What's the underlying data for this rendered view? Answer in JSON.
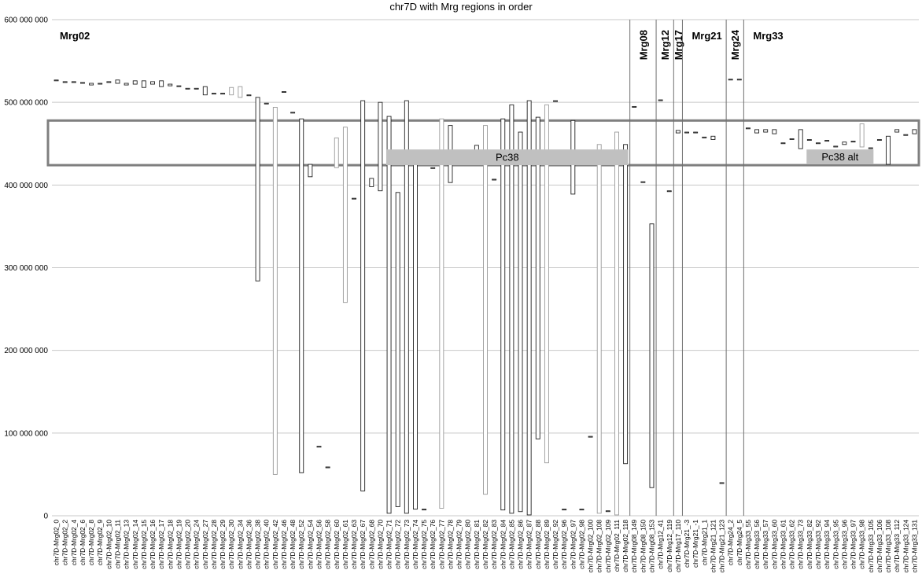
{
  "chart_data": {
    "type": "floating-bar",
    "title": "chr7D with Mrg regions in order",
    "ylim": [
      0,
      600000000
    ],
    "yticks": [
      0,
      100000000,
      200000000,
      300000000,
      400000000,
      500000000,
      600000000
    ],
    "ytick_labels": [
      "0",
      "100 000 000",
      "200 000 000",
      "300 000 000",
      "400 000 000",
      "500 000 000",
      "600 000 000"
    ],
    "grid": true,
    "categories": [
      "chr7D-Mrg02_0",
      "chr7D-Mrg02_2",
      "chr7D-Mrg02_4",
      "chr7D-Mrg02_6",
      "chr7D-Mrg02_8",
      "chr7D-Mrg02_9",
      "chr7D-Mrg02_10",
      "chr7D-Mrg02_11",
      "chr7D-Mrg02_13",
      "chr7D-Mrg02_14",
      "chr7D-Mrg02_15",
      "chr7D-Mrg02_16",
      "chr7D-Mrg02_17",
      "chr7D-Mrg02_18",
      "chr7D-Mrg02_19",
      "chr7D-Mrg02_20",
      "chr7D-Mrg02_24",
      "chr7D-Mrg02_27",
      "chr7D-Mrg02_28",
      "chr7D-Mrg02_29",
      "chr7D-Mrg02_30",
      "chr7D-Mrg02_34",
      "chr7D-Mrg02_36",
      "chr7D-Mrg02_38",
      "chr7D-Mrg02_40",
      "chr7D-Mrg02_42",
      "chr7D-Mrg02_46",
      "chr7D-Mrg02_48",
      "chr7D-Mrg02_52",
      "chr7D-Mrg02_54",
      "chr7D-Mrg02_56",
      "chr7D-Mrg02_58",
      "chr7D-Mrg02_60",
      "chr7D-Mrg02_61",
      "chr7D-Mrg02_63",
      "chr7D-Mrg02_67",
      "chr7D-Mrg02_68",
      "chr7D-Mrg02_70",
      "chr7D-Mrg02_71",
      "chr7D-Mrg02_72",
      "chr7D-Mrg02_73",
      "chr7D-Mrg02_74",
      "chr7D-Mrg02_75",
      "chr7D-Mrg02_76",
      "chr7D-Mrg02_77",
      "chr7D-Mrg02_78",
      "chr7D-Mrg02_79",
      "chr7D-Mrg02_80",
      "chr7D-Mrg02_81",
      "chr7D-Mrg02_82",
      "chr7D-Mrg02_83",
      "chr7D-Mrg02_84",
      "chr7D-Mrg02_85",
      "chr7D-Mrg02_86",
      "chr7D-Mrg02_87",
      "chr7D-Mrg02_88",
      "chr7D-Mrg02_89",
      "chr7D-Mrg02_92",
      "chr7D-Mrg02_96",
      "chr7D-Mrg02_97",
      "chr7D-Mrg02_98",
      "chr7D-Mrg02_100",
      "chr7D-Mrg02_108",
      "chr7D-Mrg02_109",
      "chr7D-Mrg02_111",
      "chr7D-Mrg02_118",
      "chr7D-Mrg08_149",
      "chr7D-Mrg08_150",
      "chr7D-Mrg08_153",
      "chr7D-Mrg12_41",
      "chr7D-Mrg12_119",
      "chr7D-Mrg17_110",
      "chr7D-Mrg21_-3",
      "chr7D-Mrg21_-1",
      "chr7D-Mrg21_1",
      "chr7D-Mrg21_121",
      "chr7D-Mrg21_123",
      "chr7D-Mrg24_2",
      "chr7D-Mrg24_5",
      "chr7D-Mrg33_55",
      "chr7D-Mrg33_56",
      "chr7D-Mrg33_57",
      "chr7D-Mrg33_60",
      "chr7D-Mrg33_61",
      "chr7D-Mrg33_62",
      "chr7D-Mrg33_73",
      "chr7D-Mrg33_82",
      "chr7D-Mrg33_92",
      "chr7D-Mrg33_94",
      "chr7D-Mrg33_95",
      "chr7D-Mrg33_96",
      "chr7D-Mrg33_97",
      "chr7D-Mrg33_98",
      "chr7D-Mrg33_105",
      "chr7D-Mrg33_106",
      "chr7D-Mrg33_108",
      "chr7D-Mrg33_112",
      "chr7D-Mrg33_124",
      "chr7D-Mrg33_131"
    ],
    "ranges": [
      [
        526000000,
        527000000
      ],
      [
        524000000,
        525000000
      ],
      [
        524000000,
        525000000
      ],
      [
        523000000,
        524000000
      ],
      [
        521000000,
        523000000
      ],
      [
        522000000,
        523000000
      ],
      [
        524000000,
        525000000
      ],
      [
        523000000,
        527000000
      ],
      [
        521000000,
        523000000
      ],
      [
        522000000,
        526000000
      ],
      [
        518000000,
        526000000
      ],
      [
        522000000,
        525000000
      ],
      [
        519000000,
        526000000
      ],
      [
        520000000,
        522000000
      ],
      [
        519000000,
        520000000
      ],
      [
        516000000,
        517000000
      ],
      [
        516000000,
        517000000
      ],
      [
        509000000,
        519000000
      ],
      [
        510000000,
        511000000
      ],
      [
        510000000,
        511000000
      ],
      [
        509000000,
        518000000
      ],
      [
        506000000,
        519000000
      ],
      [
        508000000,
        509000000
      ],
      [
        284000000,
        506000000
      ],
      [
        498000000,
        499000000
      ],
      [
        50000000,
        494000000
      ],
      [
        512000000,
        513000000
      ],
      [
        487000000,
        488000000
      ],
      [
        52000000,
        480000000
      ],
      [
        410000000,
        425000000
      ],
      [
        83000000,
        84000000
      ],
      [
        58000000,
        59000000
      ],
      [
        421000000,
        457000000
      ],
      [
        258000000,
        470000000
      ],
      [
        383000000,
        384000000
      ],
      [
        30000000,
        502000000
      ],
      [
        398000000,
        408000000
      ],
      [
        393000000,
        500000000
      ],
      [
        3000000,
        483000000
      ],
      [
        11000000,
        391000000
      ],
      [
        3000000,
        502000000
      ],
      [
        8000000,
        426000000
      ],
      [
        7000000,
        8000000
      ],
      [
        420000000,
        421000000
      ],
      [
        9000000,
        480000000
      ],
      [
        403000000,
        472000000
      ],
      [
        425000000,
        426000000
      ],
      [
        425000000,
        426000000
      ],
      [
        442000000,
        448000000
      ],
      [
        26000000,
        472000000
      ],
      [
        406000000,
        407000000
      ],
      [
        7000000,
        480000000
      ],
      [
        3000000,
        497000000
      ],
      [
        5000000,
        464000000
      ],
      [
        1000000,
        502000000
      ],
      [
        93000000,
        482000000
      ],
      [
        64000000,
        497000000
      ],
      [
        501000000,
        502000000
      ],
      [
        7000000,
        8000000
      ],
      [
        389000000,
        478000000
      ],
      [
        7000000,
        8000000
      ],
      [
        95000000,
        96000000
      ],
      [
        3000000,
        449000000
      ],
      [
        5000000,
        6000000
      ],
      [
        1000000,
        464000000
      ],
      [
        63000000,
        449000000
      ],
      [
        494000000,
        495000000
      ],
      [
        403000000,
        404000000
      ],
      [
        34000000,
        353000000
      ],
      [
        502000000,
        503000000
      ],
      [
        392000000,
        393000000
      ],
      [
        463000000,
        466000000
      ],
      [
        463000000,
        464000000
      ],
      [
        463000000,
        464000000
      ],
      [
        457000000,
        458000000
      ],
      [
        455000000,
        459000000
      ],
      [
        39000000,
        40000000
      ],
      [
        527000000,
        528000000
      ],
      [
        527000000,
        528000000
      ],
      [
        468000000,
        469000000
      ],
      [
        463000000,
        467000000
      ],
      [
        464000000,
        467000000
      ],
      [
        462000000,
        467000000
      ],
      [
        450000000,
        451000000
      ],
      [
        455000000,
        456000000
      ],
      [
        444000000,
        467000000
      ],
      [
        454000000,
        455000000
      ],
      [
        450000000,
        451000000
      ],
      [
        453000000,
        454000000
      ],
      [
        446000000,
        447000000
      ],
      [
        449000000,
        452000000
      ],
      [
        452000000,
        453000000
      ],
      [
        446000000,
        474000000
      ],
      [
        444000000,
        445000000
      ],
      [
        454000000,
        455000000
      ],
      [
        425000000,
        459000000
      ],
      [
        464000000,
        467000000
      ],
      [
        460000000,
        461000000
      ],
      [
        462000000,
        467000000
      ]
    ],
    "light_bars": [
      "chr7D-Mrg02_30",
      "chr7D-Mrg02_34",
      "chr7D-Mrg02_42",
      "chr7D-Mrg02_60",
      "chr7D-Mrg02_61",
      "chr7D-Mrg02_77",
      "chr7D-Mrg02_82",
      "chr7D-Mrg02_89",
      "chr7D-Mrg02_108",
      "chr7D-Mrg02_111",
      "chr7D-Mrg33_98"
    ],
    "regions": [
      {
        "label": "Mrg02",
        "vertical": false,
        "start": "chr7D-Mrg02_0"
      },
      {
        "label": "Mrg08",
        "vertical": true,
        "start": "chr7D-Mrg08_149"
      },
      {
        "label": "Mrg12",
        "vertical": true,
        "start": "chr7D-Mrg12_41"
      },
      {
        "label": "Mrg17",
        "vertical": true,
        "start": "chr7D-Mrg17_110"
      },
      {
        "label": "Mrg21",
        "vertical": false,
        "start": "chr7D-Mrg21_-3"
      },
      {
        "label": "Mrg24",
        "vertical": true,
        "start": "chr7D-Mrg24_2"
      },
      {
        "label": "Mrg33",
        "vertical": false,
        "start": "chr7D-Mrg33_55"
      }
    ],
    "annotations": [
      {
        "label": "Pc38",
        "from": "chr7D-Mrg02_71",
        "to": "chr7D-Mrg02_118",
        "y_range": [
          424000000,
          443000000
        ]
      },
      {
        "label": "Pc38 alt",
        "from": "chr7D-Mrg33_82",
        "to": "chr7D-Mrg33_105",
        "y_range": [
          425000000,
          443000000
        ]
      }
    ],
    "highlight_band": {
      "y_range": [
        424000000,
        478000000
      ]
    }
  }
}
